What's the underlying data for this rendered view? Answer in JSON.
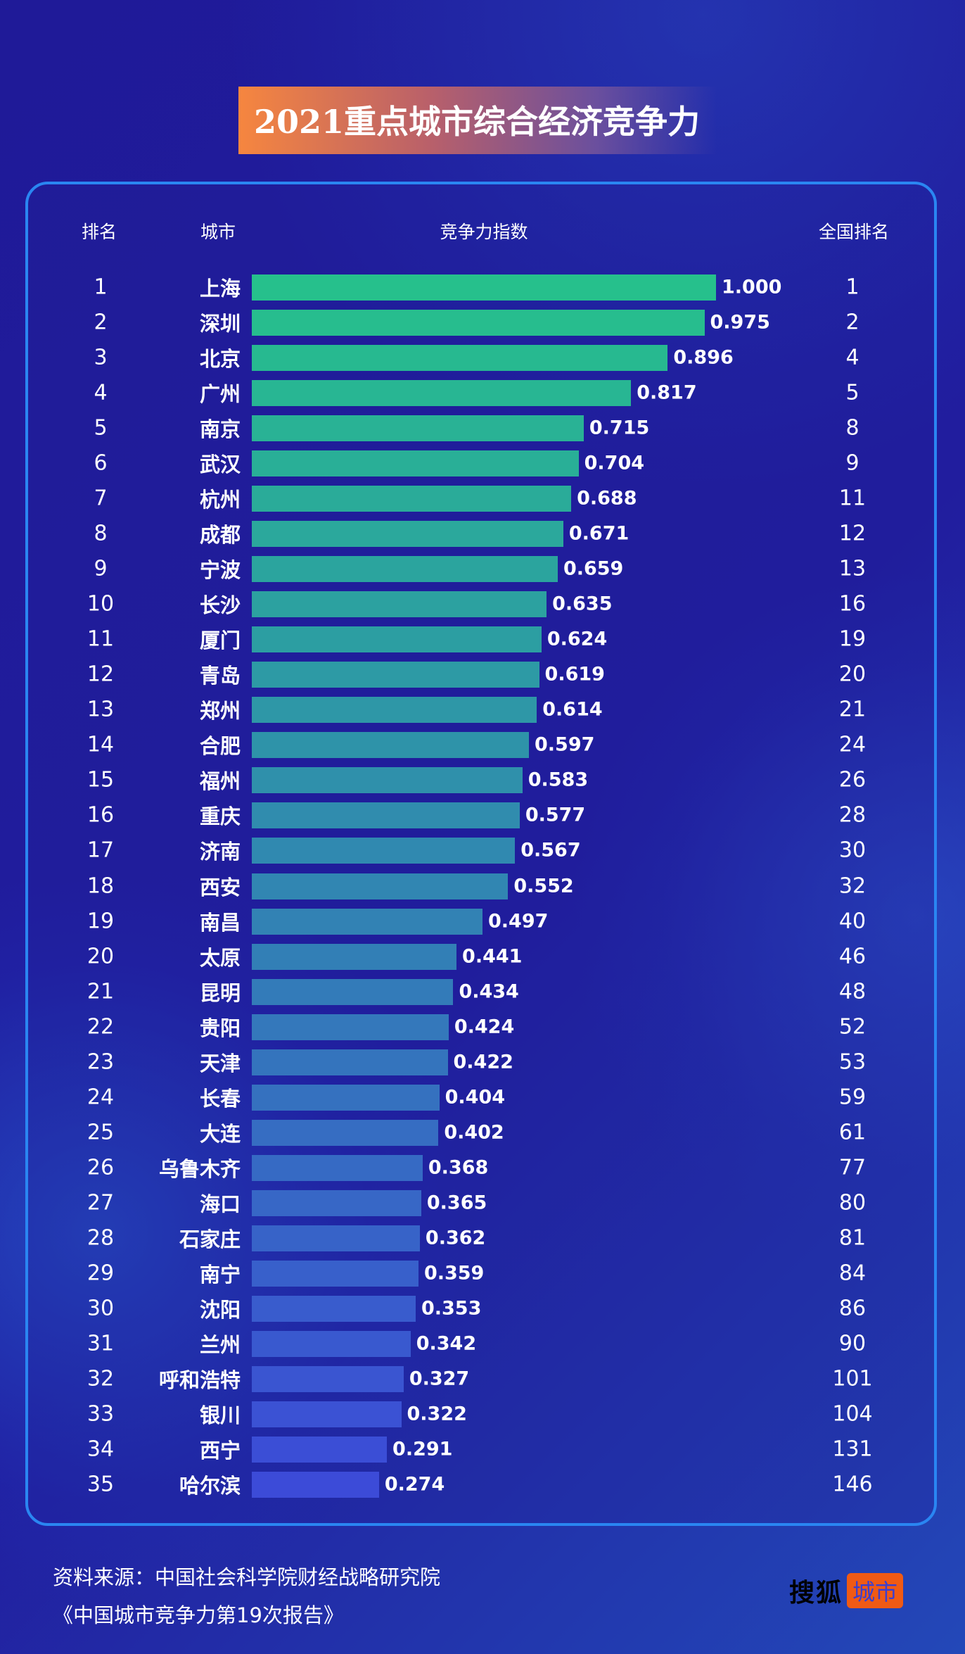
{
  "title": "2021重点城市综合经济竞争力",
  "headers": {
    "rank": "排名",
    "city": "城市",
    "index": "竞争力指数",
    "national_rank": "全国排名"
  },
  "colors": {
    "bar_top": "#26c08c",
    "bar_bottom": "#3c4bd8",
    "border": "#2a86f2",
    "title_start": "#f6863f"
  },
  "chart_data": {
    "type": "bar",
    "orientation": "horizontal",
    "title": "2021重点城市综合经济竞争力",
    "xlabel": "竞争力指数",
    "xlim": [
      0,
      1
    ],
    "rows": [
      {
        "rank": "1",
        "city": "上海",
        "value": 1.0,
        "label": "1.000",
        "national_rank": "1"
      },
      {
        "rank": "2",
        "city": "深圳",
        "value": 0.975,
        "label": "0.975",
        "national_rank": "2"
      },
      {
        "rank": "3",
        "city": "北京",
        "value": 0.896,
        "label": "0.896",
        "national_rank": "4"
      },
      {
        "rank": "4",
        "city": "广州",
        "value": 0.817,
        "label": "0.817",
        "national_rank": "5"
      },
      {
        "rank": "5",
        "city": "南京",
        "value": 0.715,
        "label": "0.715",
        "national_rank": "8"
      },
      {
        "rank": "6",
        "city": "武汉",
        "value": 0.704,
        "label": "0.704",
        "national_rank": "9"
      },
      {
        "rank": "7",
        "city": "杭州",
        "value": 0.688,
        "label": "0.688",
        "national_rank": "11"
      },
      {
        "rank": "8",
        "city": "成都",
        "value": 0.671,
        "label": "0.671",
        "national_rank": "12"
      },
      {
        "rank": "9",
        "city": "宁波",
        "value": 0.659,
        "label": "0.659",
        "national_rank": "13"
      },
      {
        "rank": "10",
        "city": "长沙",
        "value": 0.635,
        "label": "0.635",
        "national_rank": "16"
      },
      {
        "rank": "11",
        "city": "厦门",
        "value": 0.624,
        "label": "0.624",
        "national_rank": "19"
      },
      {
        "rank": "12",
        "city": "青岛",
        "value": 0.619,
        "label": "0.619",
        "national_rank": "20"
      },
      {
        "rank": "13",
        "city": "郑州",
        "value": 0.614,
        "label": "0.614",
        "national_rank": "21"
      },
      {
        "rank": "14",
        "city": "合肥",
        "value": 0.597,
        "label": "0.597",
        "national_rank": "24"
      },
      {
        "rank": "15",
        "city": "福州",
        "value": 0.583,
        "label": "0.583",
        "national_rank": "26"
      },
      {
        "rank": "16",
        "city": "重庆",
        "value": 0.577,
        "label": "0.577",
        "national_rank": "28"
      },
      {
        "rank": "17",
        "city": "济南",
        "value": 0.567,
        "label": "0.567",
        "national_rank": "30"
      },
      {
        "rank": "18",
        "city": "西安",
        "value": 0.552,
        "label": "0.552",
        "national_rank": "32"
      },
      {
        "rank": "19",
        "city": "南昌",
        "value": 0.497,
        "label": "0.497",
        "national_rank": "40"
      },
      {
        "rank": "20",
        "city": "太原",
        "value": 0.441,
        "label": "0.441",
        "national_rank": "46"
      },
      {
        "rank": "21",
        "city": "昆明",
        "value": 0.434,
        "label": "0.434",
        "national_rank": "48"
      },
      {
        "rank": "22",
        "city": "贵阳",
        "value": 0.424,
        "label": "0.424",
        "national_rank": "52"
      },
      {
        "rank": "23",
        "city": "天津",
        "value": 0.422,
        "label": "0.422",
        "national_rank": "53"
      },
      {
        "rank": "24",
        "city": "长春",
        "value": 0.404,
        "label": "0.404",
        "national_rank": "59"
      },
      {
        "rank": "25",
        "city": "大连",
        "value": 0.402,
        "label": "0.402",
        "national_rank": "61"
      },
      {
        "rank": "26",
        "city": "乌鲁木齐",
        "value": 0.368,
        "label": "0.368",
        "national_rank": "77"
      },
      {
        "rank": "27",
        "city": "海口",
        "value": 0.365,
        "label": "0.365",
        "national_rank": "80"
      },
      {
        "rank": "28",
        "city": "石家庄",
        "value": 0.362,
        "label": "0.362",
        "national_rank": "81"
      },
      {
        "rank": "29",
        "city": "南宁",
        "value": 0.359,
        "label": "0.359",
        "national_rank": "84"
      },
      {
        "rank": "30",
        "city": "沈阳",
        "value": 0.353,
        "label": "0.353",
        "national_rank": "86"
      },
      {
        "rank": "31",
        "city": "兰州",
        "value": 0.342,
        "label": "0.342",
        "national_rank": "90"
      },
      {
        "rank": "32",
        "city": "呼和浩特",
        "value": 0.327,
        "label": "0.327",
        "national_rank": "101"
      },
      {
        "rank": "33",
        "city": "银川",
        "value": 0.322,
        "label": "0.322",
        "national_rank": "104"
      },
      {
        "rank": "34",
        "city": "西宁",
        "value": 0.291,
        "label": "0.291",
        "national_rank": "131"
      },
      {
        "rank": "35",
        "city": "哈尔滨",
        "value": 0.274,
        "label": "0.274",
        "national_rank": "146"
      }
    ]
  },
  "footer": {
    "source_line1": "资料来源：中国社会科学院财经战略研究院",
    "source_line2": "《中国城市竞争力第19次报告》",
    "logo_part1": "搜狐",
    "logo_part2": "城市"
  }
}
